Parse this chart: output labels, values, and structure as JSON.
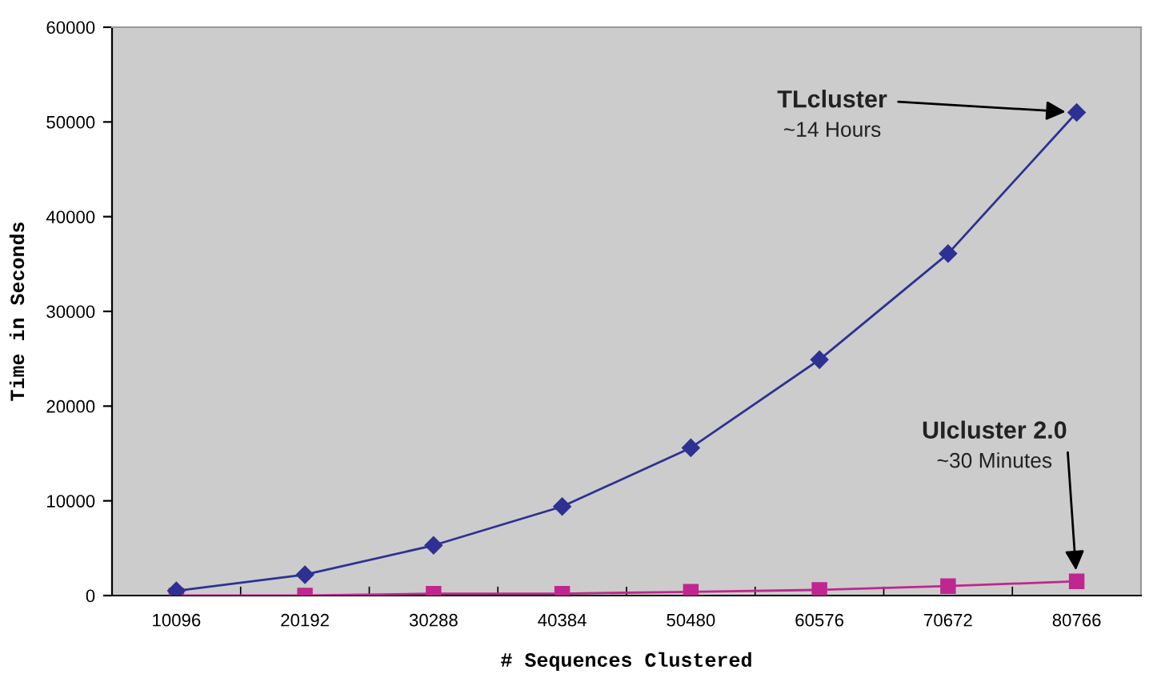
{
  "chart_data": {
    "type": "line",
    "xlabel": "# Sequences Clustered",
    "ylabel": "Time in Seconds",
    "categories": [
      "10096",
      "20192",
      "30288",
      "40384",
      "50480",
      "60576",
      "70672",
      "80766"
    ],
    "series": [
      {
        "name": "TLcluster",
        "color": "#2e3192",
        "marker": "diamond",
        "values": [
          500,
          2200,
          5300,
          9400,
          15600,
          24900,
          36100,
          51000
        ]
      },
      {
        "name": "UIcluster 2.0",
        "color": "#c0268f",
        "marker": "square",
        "values": [
          0,
          0,
          200,
          200,
          400,
          600,
          1000,
          1500
        ]
      }
    ],
    "annotations": [
      {
        "text": "~14 Hours",
        "x": "80766",
        "y": 51000
      },
      {
        "text": "~30 Minutes",
        "x": "80766",
        "y": 1500
      }
    ],
    "ylim": [
      0,
      60000
    ],
    "yticks": [
      0,
      10000,
      20000,
      30000,
      40000,
      50000,
      60000
    ],
    "grid": false,
    "line_style": "solid"
  }
}
